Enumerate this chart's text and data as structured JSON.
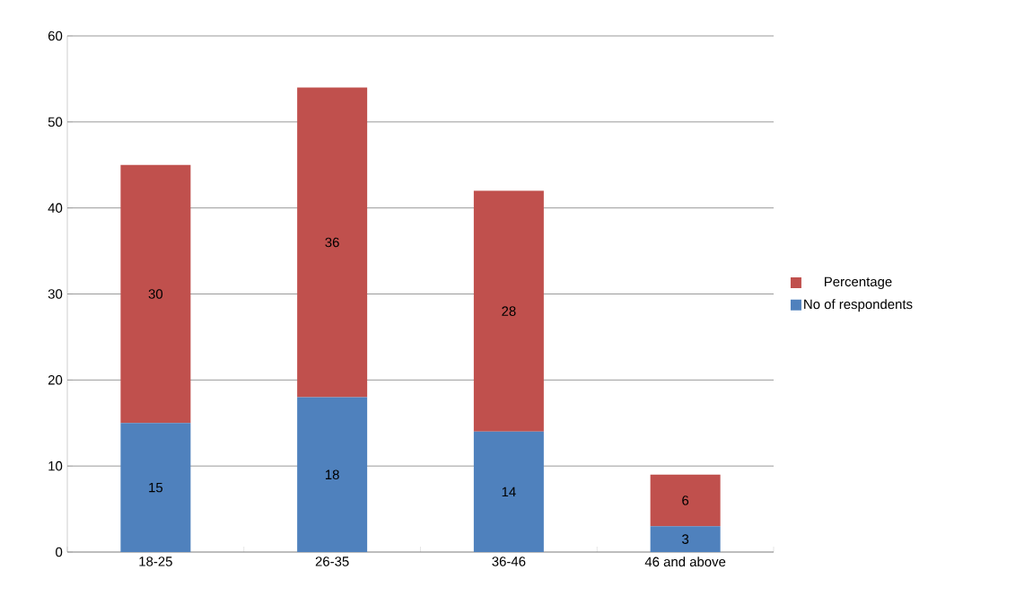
{
  "chart_data": {
    "type": "bar",
    "stacked": true,
    "categories": [
      "18-25",
      "26-35",
      "36-46",
      "46 and above"
    ],
    "series": [
      {
        "name": "No of respondents",
        "color": "#4f81bd",
        "values": [
          15,
          18,
          14,
          3
        ]
      },
      {
        "name": "Percentage",
        "color": "#c0504d",
        "values": [
          30,
          36,
          28,
          6
        ]
      }
    ],
    "ylim": [
      0,
      60
    ],
    "yticks": [
      0,
      10,
      20,
      30,
      40,
      50,
      60
    ],
    "grid": "y",
    "legend": "right",
    "data_labels": true
  }
}
